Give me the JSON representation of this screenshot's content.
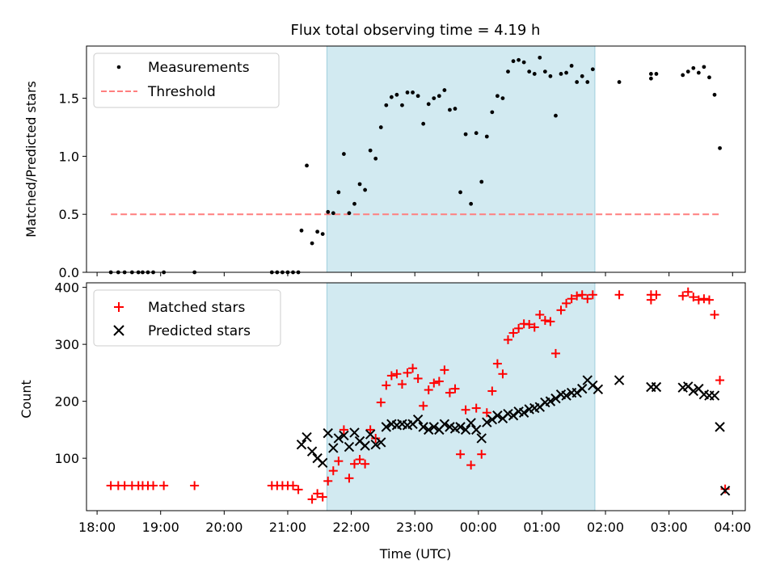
{
  "chart_data": [
    {
      "type": "scatter",
      "title": "Flux total observing time = 4.19 h",
      "xlabel": "",
      "ylabel": "Matched/Predicted stars",
      "xaxis": "Time (UTC), shared with lower panel",
      "ylim": [
        0,
        1.95
      ],
      "yticks": [
        0.0,
        0.5,
        1.0,
        1.5
      ],
      "ytick_labels": [
        "0.0",
        "0.5",
        "1.0",
        "1.5"
      ],
      "legend": {
        "placement": "top-left",
        "entries": [
          "Measurements",
          "Threshold"
        ]
      },
      "shaded_interval": {
        "start": "21:37",
        "end": "01:50",
        "color": "#add8e6"
      },
      "series": [
        {
          "name": "Measurements",
          "color": "#000000",
          "marker": "dot",
          "points": [
            [
              "18:13",
              0
            ],
            [
              "18:20",
              0
            ],
            [
              "18:26",
              0
            ],
            [
              "18:33",
              0
            ],
            [
              "18:39",
              0
            ],
            [
              "18:43",
              0
            ],
            [
              "18:48",
              0
            ],
            [
              "18:53",
              0
            ],
            [
              "19:03",
              0
            ],
            [
              "19:32",
              0
            ],
            [
              "20:45",
              0
            ],
            [
              "20:50",
              0
            ],
            [
              "20:55",
              0
            ],
            [
              "21:00",
              0
            ],
            [
              "21:05",
              0
            ],
            [
              "21:10",
              0
            ],
            [
              "21:13",
              0.36
            ],
            [
              "21:18",
              0.92
            ],
            [
              "21:23",
              0.25
            ],
            [
              "21:28",
              0.35
            ],
            [
              "21:33",
              0.33
            ],
            [
              "21:38",
              0.52
            ],
            [
              "21:43",
              0.51
            ],
            [
              "21:48",
              0.69
            ],
            [
              "21:53",
              1.02
            ],
            [
              "21:58",
              0.51
            ],
            [
              "22:03",
              0.59
            ],
            [
              "22:08",
              0.76
            ],
            [
              "22:13",
              0.71
            ],
            [
              "22:18",
              1.05
            ],
            [
              "22:23",
              0.98
            ],
            [
              "22:28",
              1.25
            ],
            [
              "22:33",
              1.44
            ],
            [
              "22:38",
              1.51
            ],
            [
              "22:43",
              1.53
            ],
            [
              "22:48",
              1.44
            ],
            [
              "22:53",
              1.55
            ],
            [
              "22:58",
              1.55
            ],
            [
              "23:03",
              1.52
            ],
            [
              "23:08",
              1.28
            ],
            [
              "23:13",
              1.45
            ],
            [
              "23:18",
              1.5
            ],
            [
              "23:23",
              1.52
            ],
            [
              "23:28",
              1.57
            ],
            [
              "23:33",
              1.4
            ],
            [
              "23:38",
              1.41
            ],
            [
              "23:43",
              0.69
            ],
            [
              "23:48",
              1.19
            ],
            [
              "23:53",
              0.59
            ],
            [
              "23:58",
              1.2
            ],
            [
              "00:03",
              0.78
            ],
            [
              "00:08",
              1.17
            ],
            [
              "00:13",
              1.38
            ],
            [
              "00:18",
              1.52
            ],
            [
              "00:23",
              1.5
            ],
            [
              "00:28",
              1.73
            ],
            [
              "00:33",
              1.82
            ],
            [
              "00:38",
              1.83
            ],
            [
              "00:43",
              1.81
            ],
            [
              "00:48",
              1.73
            ],
            [
              "00:53",
              1.71
            ],
            [
              "00:58",
              1.85
            ],
            [
              "01:03",
              1.73
            ],
            [
              "01:08",
              1.69
            ],
            [
              "01:13",
              1.35
            ],
            [
              "01:18",
              1.71
            ],
            [
              "01:23",
              1.72
            ],
            [
              "01:28",
              1.78
            ],
            [
              "01:33",
              1.64
            ],
            [
              "01:38",
              1.69
            ],
            [
              "01:43",
              1.64
            ],
            [
              "01:48",
              1.75
            ],
            [
              "02:13",
              1.64
            ],
            [
              "02:43",
              1.67
            ],
            [
              "02:43",
              1.71
            ],
            [
              "02:48",
              1.71
            ],
            [
              "03:13",
              1.7
            ],
            [
              "03:18",
              1.73
            ],
            [
              "03:23",
              1.76
            ],
            [
              "03:28",
              1.72
            ],
            [
              "03:33",
              1.77
            ],
            [
              "03:38",
              1.68
            ],
            [
              "03:43",
              1.53
            ],
            [
              "03:48",
              1.07
            ]
          ]
        },
        {
          "name": "Threshold",
          "color": "#ff7f7f",
          "style": "dashed",
          "points": [
            [
              "18:13",
              0.5
            ],
            [
              "03:48",
              0.5
            ]
          ]
        }
      ]
    },
    {
      "type": "scatter",
      "title": "",
      "xlabel": "Time (UTC)",
      "ylabel": "Count",
      "ylim": [
        8,
        408
      ],
      "yticks": [
        100,
        200,
        300,
        400
      ],
      "ytick_labels": [
        "100",
        "200",
        "300",
        "400"
      ],
      "xlim": [
        "17:50",
        "04:12"
      ],
      "xticks": [
        "18:00",
        "19:00",
        "20:00",
        "21:00",
        "22:00",
        "23:00",
        "00:00",
        "01:00",
        "02:00",
        "03:00",
        "04:00"
      ],
      "legend": {
        "placement": "top-left",
        "entries": [
          "Matched stars",
          "Predicted stars"
        ]
      },
      "shaded_interval": {
        "start": "21:37",
        "end": "01:50",
        "color": "#add8e6"
      },
      "series": [
        {
          "name": "Matched stars",
          "color": "#ff0000",
          "marker": "plus",
          "points": [
            [
              "18:13",
              52
            ],
            [
              "18:20",
              52
            ],
            [
              "18:26",
              52
            ],
            [
              "18:33",
              52
            ],
            [
              "18:39",
              52
            ],
            [
              "18:43",
              52
            ],
            [
              "18:48",
              52
            ],
            [
              "18:53",
              52
            ],
            [
              "19:03",
              52
            ],
            [
              "19:32",
              52
            ],
            [
              "20:45",
              52
            ],
            [
              "20:50",
              52
            ],
            [
              "20:55",
              52
            ],
            [
              "21:00",
              52
            ],
            [
              "21:05",
              52
            ],
            [
              "21:10",
              45
            ],
            [
              "21:23",
              28
            ],
            [
              "21:28",
              38
            ],
            [
              "21:33",
              32
            ],
            [
              "21:38",
              60
            ],
            [
              "21:43",
              78
            ],
            [
              "21:48",
              95
            ],
            [
              "21:53",
              150
            ],
            [
              "21:58",
              65
            ],
            [
              "22:03",
              90
            ],
            [
              "22:08",
              98
            ],
            [
              "22:13",
              90
            ],
            [
              "22:18",
              150
            ],
            [
              "22:23",
              135
            ],
            [
              "22:28",
              198
            ],
            [
              "22:33",
              228
            ],
            [
              "22:38",
              245
            ],
            [
              "22:43",
              248
            ],
            [
              "22:48",
              230
            ],
            [
              "22:53",
              250
            ],
            [
              "22:58",
              258
            ],
            [
              "23:03",
              240
            ],
            [
              "23:08",
              192
            ],
            [
              "23:13",
              220
            ],
            [
              "23:18",
              232
            ],
            [
              "23:23",
              235
            ],
            [
              "23:28",
              255
            ],
            [
              "23:33",
              215
            ],
            [
              "23:38",
              222
            ],
            [
              "23:43",
              107
            ],
            [
              "23:48",
              185
            ],
            [
              "23:53",
              88
            ],
            [
              "23:58",
              188
            ],
            [
              "00:03",
              107
            ],
            [
              "00:08",
              180
            ],
            [
              "00:13",
              218
            ],
            [
              "00:18",
              266
            ],
            [
              "00:23",
              248
            ],
            [
              "00:28",
              308
            ],
            [
              "00:33",
              320
            ],
            [
              "00:38",
              328
            ],
            [
              "00:43",
              336
            ],
            [
              "00:48",
              335
            ],
            [
              "00:53",
              330
            ],
            [
              "00:58",
              352
            ],
            [
              "01:03",
              342
            ],
            [
              "01:08",
              340
            ],
            [
              "01:13",
              284
            ],
            [
              "01:18",
              360
            ],
            [
              "01:23",
              372
            ],
            [
              "01:28",
              380
            ],
            [
              "01:33",
              385
            ],
            [
              "01:38",
              387
            ],
            [
              "01:43",
              380
            ],
            [
              "01:48",
              387
            ],
            [
              "02:13",
              387
            ],
            [
              "02:43",
              378
            ],
            [
              "02:43",
              387
            ],
            [
              "02:48",
              387
            ],
            [
              "03:13",
              385
            ],
            [
              "03:18",
              392
            ],
            [
              "03:23",
              383
            ],
            [
              "03:28",
              378
            ],
            [
              "03:33",
              380
            ],
            [
              "03:38",
              378
            ],
            [
              "03:43",
              352
            ],
            [
              "03:48",
              237
            ],
            [
              "03:53",
              46
            ]
          ]
        },
        {
          "name": "Predicted stars",
          "color": "#000000",
          "marker": "x",
          "points": [
            [
              "21:13",
              124
            ],
            [
              "21:18",
              137
            ],
            [
              "21:23",
              112
            ],
            [
              "21:28",
              100
            ],
            [
              "21:33",
              92
            ],
            [
              "21:38",
              144
            ],
            [
              "21:43",
              118
            ],
            [
              "21:48",
              135
            ],
            [
              "21:53",
              140
            ],
            [
              "21:58",
              120
            ],
            [
              "22:03",
              145
            ],
            [
              "22:08",
              130
            ],
            [
              "22:13",
              122
            ],
            [
              "22:18",
              142
            ],
            [
              "22:23",
              124
            ],
            [
              "22:28",
              128
            ],
            [
              "22:33",
              155
            ],
            [
              "22:38",
              160
            ],
            [
              "22:43",
              158
            ],
            [
              "22:48",
              160
            ],
            [
              "22:53",
              158
            ],
            [
              "22:58",
              160
            ],
            [
              "23:03",
              168
            ],
            [
              "23:08",
              155
            ],
            [
              "23:13",
              150
            ],
            [
              "23:18",
              155
            ],
            [
              "23:23",
              150
            ],
            [
              "23:28",
              160
            ],
            [
              "23:33",
              155
            ],
            [
              "23:38",
              152
            ],
            [
              "23:43",
              155
            ],
            [
              "23:48",
              150
            ],
            [
              "23:53",
              162
            ],
            [
              "23:58",
              150
            ],
            [
              "00:03",
              135
            ],
            [
              "00:08",
              163
            ],
            [
              "00:13",
              168
            ],
            [
              "00:18",
              175
            ],
            [
              "00:23",
              170
            ],
            [
              "00:28",
              178
            ],
            [
              "00:33",
              175
            ],
            [
              "00:38",
              182
            ],
            [
              "00:43",
              180
            ],
            [
              "00:48",
              186
            ],
            [
              "00:53",
              188
            ],
            [
              "00:58",
              190
            ],
            [
              "01:03",
              198
            ],
            [
              "01:08",
              200
            ],
            [
              "01:13",
              205
            ],
            [
              "01:18",
              212
            ],
            [
              "01:23",
              210
            ],
            [
              "01:28",
              215
            ],
            [
              "01:33",
              215
            ],
            [
              "01:38",
              222
            ],
            [
              "01:43",
              237
            ],
            [
              "01:48",
              228
            ],
            [
              "01:53",
              221
            ],
            [
              "02:13",
              237
            ],
            [
              "02:43",
              225
            ],
            [
              "02:48",
              225
            ],
            [
              "03:13",
              224
            ],
            [
              "03:18",
              226
            ],
            [
              "03:23",
              218
            ],
            [
              "03:28",
              222
            ],
            [
              "03:33",
              212
            ],
            [
              "03:38",
              210
            ],
            [
              "03:43",
              210
            ],
            [
              "03:48",
              155
            ],
            [
              "03:53",
              43
            ]
          ]
        }
      ]
    }
  ]
}
